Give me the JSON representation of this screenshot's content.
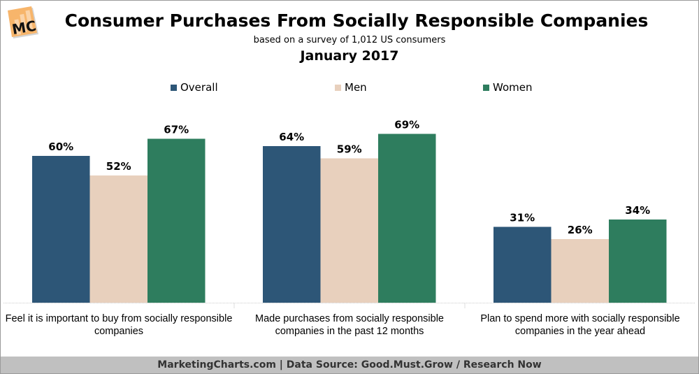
{
  "logo": {
    "text": "MC"
  },
  "chart_data": {
    "type": "bar",
    "title": "Consumer Purchases From Socially Responsible Companies",
    "subtitle": "based on a survey of 1,012 US consumers",
    "date": "January 2017",
    "categories": [
      "Feel it is important to buy from socially responsible companies",
      "Made purchases from socially responsible companies in the past 12 months",
      "Plan to spend more with socially responsible companies in the year ahead"
    ],
    "series": [
      {
        "name": "Overall",
        "color": "#2d5677",
        "values": [
          60,
          64,
          31
        ]
      },
      {
        "name": "Men",
        "color": "#e8d0bd",
        "values": [
          52,
          59,
          26
        ]
      },
      {
        "name": "Women",
        "color": "#2e7d5e",
        "values": [
          67,
          69,
          34
        ]
      }
    ],
    "value_suffix": "%",
    "legend_position": "top",
    "grid": false,
    "ylim": [
      0,
      100
    ]
  },
  "footer": "MarketingCharts.com | Data Source: Good.Must.Grow / Research Now"
}
